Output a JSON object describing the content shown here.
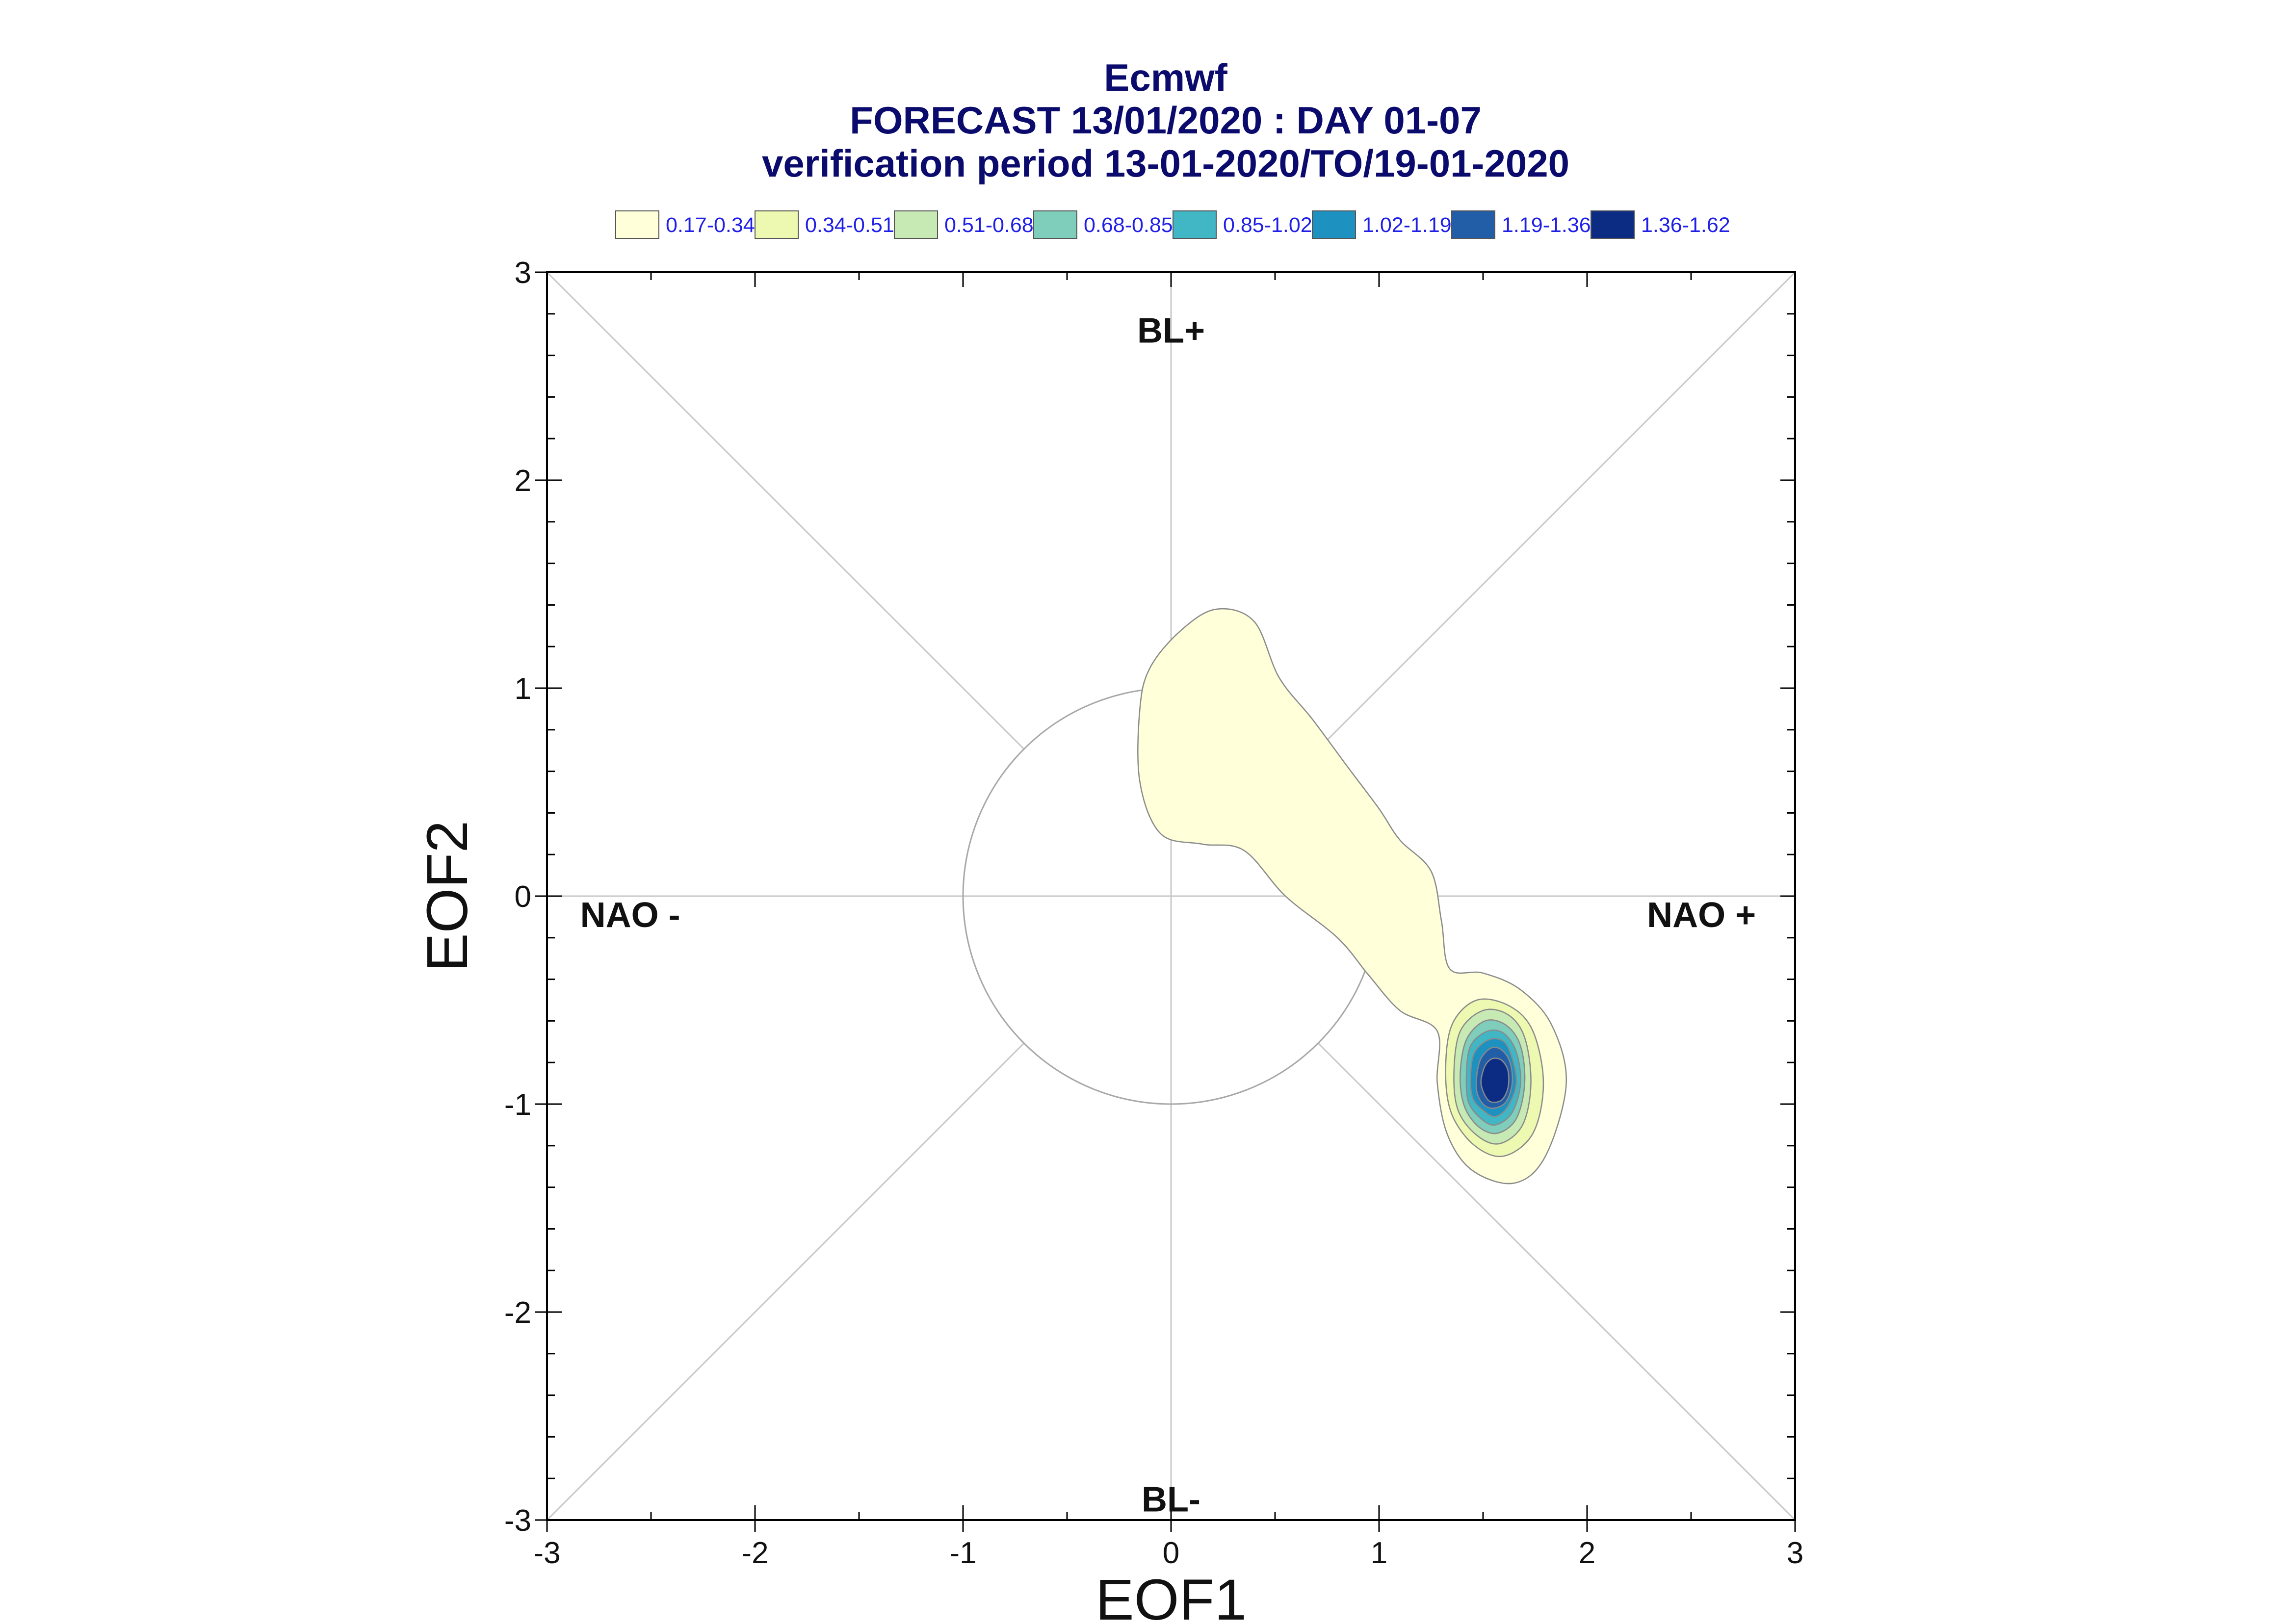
{
  "chart_data": {
    "type": "contour",
    "title": [
      "Ecmwf",
      "FORECAST 13/01/2020 : DAY 01-07",
      "verification period 13-01-2020/TO/19-01-2020"
    ],
    "xlabel": "EOF1",
    "ylabel": "EOF2",
    "xlim": [
      -3,
      3
    ],
    "ylim": [
      -3,
      3
    ],
    "xticks": [
      "-3",
      "-2",
      "-1",
      "0",
      "1",
      "2",
      "3"
    ],
    "yticks": [
      "-3",
      "-2",
      "-1",
      "0",
      "1",
      "2",
      "3"
    ],
    "legend": {
      "placement": "top",
      "levels": [
        {
          "label": "0.17-0.34",
          "color": "#ffffd9"
        },
        {
          "label": "0.34-0.51",
          "color": "#edf8b1"
        },
        {
          "label": "0.51-0.68",
          "color": "#c7e9b4"
        },
        {
          "label": "0.68-0.85",
          "color": "#7fcdbb"
        },
        {
          "label": "0.85-1.02",
          "color": "#41b6c4"
        },
        {
          "label": "1.02-1.19",
          "color": "#1d91c0"
        },
        {
          "label": "1.19-1.36",
          "color": "#225ea8"
        },
        {
          "label": "1.36-1.62",
          "color": "#0c2c84"
        }
      ]
    },
    "region_labels": [
      {
        "text": "BL+",
        "x": 0,
        "y": 2.72
      },
      {
        "text": "BL-",
        "x": 0,
        "y": -2.9
      },
      {
        "text": "NAO -",
        "x": -2.6,
        "y": -0.09
      },
      {
        "text": "NAO +",
        "x": 2.55,
        "y": -0.09
      }
    ],
    "reference": {
      "unit_circle_radius": 1,
      "diagonals": true,
      "zero_lines": true
    },
    "density_peak": {
      "x": 1.55,
      "y": -0.9
    },
    "contours": [
      {
        "level": 0,
        "points": [
          [
            0.22,
            1.38
          ],
          [
            0.4,
            1.32
          ],
          [
            0.52,
            1.05
          ],
          [
            0.68,
            0.85
          ],
          [
            0.85,
            0.62
          ],
          [
            1.0,
            0.42
          ],
          [
            1.1,
            0.27
          ],
          [
            1.25,
            0.12
          ],
          [
            1.3,
            -0.12
          ],
          [
            1.34,
            -0.35
          ],
          [
            1.5,
            -0.37
          ],
          [
            1.68,
            -0.45
          ],
          [
            1.83,
            -0.62
          ],
          [
            1.9,
            -0.9
          ],
          [
            1.8,
            -1.25
          ],
          [
            1.65,
            -1.38
          ],
          [
            1.45,
            -1.32
          ],
          [
            1.33,
            -1.15
          ],
          [
            1.28,
            -0.9
          ],
          [
            1.28,
            -0.65
          ],
          [
            1.1,
            -0.55
          ],
          [
            0.95,
            -0.38
          ],
          [
            0.8,
            -0.2
          ],
          [
            0.55,
            0.0
          ],
          [
            0.35,
            0.22
          ],
          [
            0.15,
            0.25
          ],
          [
            -0.05,
            0.3
          ],
          [
            -0.15,
            0.55
          ],
          [
            -0.15,
            0.9
          ],
          [
            -0.1,
            1.1
          ],
          [
            0.05,
            1.28
          ]
        ]
      },
      {
        "level": 1,
        "points": [
          [
            1.47,
            -0.5
          ],
          [
            1.63,
            -0.53
          ],
          [
            1.74,
            -0.65
          ],
          [
            1.79,
            -0.9
          ],
          [
            1.74,
            -1.14
          ],
          [
            1.6,
            -1.25
          ],
          [
            1.46,
            -1.2
          ],
          [
            1.35,
            -1.05
          ],
          [
            1.32,
            -0.85
          ],
          [
            1.35,
            -0.62
          ]
        ]
      },
      {
        "level": 2,
        "points": [
          [
            1.5,
            -0.55
          ],
          [
            1.62,
            -0.57
          ],
          [
            1.7,
            -0.68
          ],
          [
            1.73,
            -0.9
          ],
          [
            1.69,
            -1.1
          ],
          [
            1.58,
            -1.19
          ],
          [
            1.47,
            -1.15
          ],
          [
            1.38,
            -1.03
          ],
          [
            1.36,
            -0.85
          ],
          [
            1.39,
            -0.65
          ]
        ]
      },
      {
        "level": 3,
        "points": [
          [
            1.51,
            -0.6
          ],
          [
            1.61,
            -0.62
          ],
          [
            1.68,
            -0.72
          ],
          [
            1.7,
            -0.9
          ],
          [
            1.66,
            -1.07
          ],
          [
            1.57,
            -1.14
          ],
          [
            1.48,
            -1.11
          ],
          [
            1.41,
            -1.01
          ],
          [
            1.39,
            -0.86
          ],
          [
            1.42,
            -0.69
          ]
        ]
      },
      {
        "level": 4,
        "points": [
          [
            1.52,
            -0.65
          ],
          [
            1.6,
            -0.66
          ],
          [
            1.66,
            -0.75
          ],
          [
            1.68,
            -0.9
          ],
          [
            1.64,
            -1.04
          ],
          [
            1.56,
            -1.1
          ],
          [
            1.49,
            -1.07
          ],
          [
            1.43,
            -0.99
          ],
          [
            1.42,
            -0.86
          ],
          [
            1.44,
            -0.72
          ]
        ]
      },
      {
        "level": 5,
        "points": [
          [
            1.53,
            -0.69
          ],
          [
            1.6,
            -0.7
          ],
          [
            1.64,
            -0.78
          ],
          [
            1.66,
            -0.9
          ],
          [
            1.62,
            -1.01
          ],
          [
            1.56,
            -1.06
          ],
          [
            1.5,
            -1.03
          ],
          [
            1.45,
            -0.97
          ],
          [
            1.44,
            -0.86
          ],
          [
            1.46,
            -0.75
          ]
        ]
      },
      {
        "level": 6,
        "points": [
          [
            1.54,
            -0.73
          ],
          [
            1.59,
            -0.74
          ],
          [
            1.63,
            -0.8
          ],
          [
            1.64,
            -0.9
          ],
          [
            1.61,
            -0.99
          ],
          [
            1.55,
            -1.02
          ],
          [
            1.5,
            -1.0
          ],
          [
            1.47,
            -0.94
          ],
          [
            1.47,
            -0.86
          ],
          [
            1.49,
            -0.78
          ]
        ]
      },
      {
        "level": 7,
        "points": [
          [
            1.55,
            -0.78
          ],
          [
            1.59,
            -0.79
          ],
          [
            1.62,
            -0.84
          ],
          [
            1.62,
            -0.92
          ],
          [
            1.59,
            -0.98
          ],
          [
            1.54,
            -0.99
          ],
          [
            1.51,
            -0.96
          ],
          [
            1.49,
            -0.9
          ],
          [
            1.5,
            -0.84
          ],
          [
            1.52,
            -0.8
          ]
        ]
      }
    ]
  }
}
